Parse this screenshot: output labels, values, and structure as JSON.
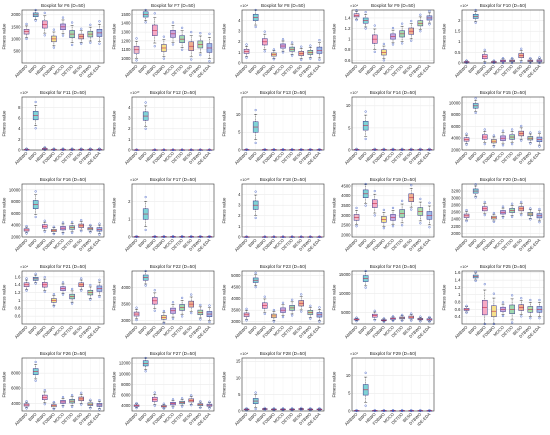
{
  "categories": [
    "AMBWO",
    "BWO",
    "HBWO",
    "FDBWO",
    "MOCO",
    "DETDO",
    "BESO",
    "DTBWO",
    "IDE-EDA"
  ],
  "colors": [
    "#f2b8c6",
    "#7fd3d6",
    "#f7a9c4",
    "#f6e08a",
    "#c7a6e0",
    "#9fd8b0",
    "#f0b090",
    "#b0e0a8",
    "#9db8e8"
  ],
  "chart_data": [
    {
      "type": "box",
      "title": "Boxplot for F6 (D=50)",
      "ylabel": "Fitness value",
      "exp": "",
      "ylim": [
        0,
        2200
      ],
      "yticks": [
        500,
        1000,
        1500,
        2000
      ],
      "values": [
        1300,
        2000,
        1600,
        1000,
        1500,
        1200,
        1100,
        1200,
        1250
      ],
      "spread": [
        100,
        80,
        150,
        120,
        120,
        150,
        100,
        120,
        150
      ]
    },
    {
      "type": "box",
      "title": "Boxplot for F7 (D=50)",
      "ylabel": "Fitness value",
      "exp": "",
      "ylim": [
        950,
        1550
      ],
      "yticks": [
        1000,
        1100,
        1200,
        1300,
        1400,
        1500
      ],
      "values": [
        1100,
        1500,
        1320,
        1120,
        1280,
        1220,
        1140,
        1160,
        1120
      ],
      "spread": [
        40,
        30,
        60,
        40,
        40,
        40,
        50,
        40,
        50
      ]
    },
    {
      "type": "box",
      "title": "Boxplot for F8 (D=50)",
      "ylabel": "Fitness value",
      "exp": "×10⁴",
      "ylim": [
        0,
        5
      ],
      "yticks": [
        0,
        1,
        2,
        3,
        4
      ],
      "values": [
        1.1,
        4.3,
        2.0,
        0.8,
        1.6,
        1.3,
        0.9,
        1.0,
        1.2
      ],
      "spread": [
        0.2,
        0.3,
        0.3,
        0.15,
        0.2,
        0.2,
        0.2,
        0.2,
        0.3
      ]
    },
    {
      "type": "box",
      "title": "Boxplot for F9 (D=50)",
      "ylabel": "Fitness value",
      "exp": "×10⁴",
      "ylim": [
        0.55,
        1.55
      ],
      "yticks": [
        0.6,
        0.8,
        1,
        1.2,
        1.4
      ],
      "values": [
        1.45,
        1.35,
        1.0,
        0.75,
        1.05,
        1.1,
        1.15,
        1.3,
        1.4
      ],
      "spread": [
        0.03,
        0.05,
        0.08,
        0.05,
        0.05,
        0.06,
        0.06,
        0.05,
        0.04
      ]
    },
    {
      "type": "box",
      "title": "Boxplot for F10 (D=50)",
      "ylabel": "Fitness value",
      "exp": "×10⁴",
      "ylim": [
        0,
        2.5
      ],
      "yticks": [
        0,
        0.5,
        1,
        1.5,
        2
      ],
      "values": [
        0.05,
        2.2,
        0.3,
        0.05,
        0.1,
        0.1,
        0.35,
        0.1,
        0.1
      ],
      "spread": [
        0.02,
        0.1,
        0.1,
        0.02,
        0.04,
        0.04,
        0.1,
        0.04,
        0.05
      ]
    },
    {
      "type": "box",
      "title": "Boxplot for F11 (D=50)",
      "ylabel": "Fitness value",
      "exp": "×10⁵",
      "ylim": [
        0,
        10
      ],
      "yticks": [
        0,
        2,
        4,
        6,
        8
      ],
      "values": [
        0.1,
        6.5,
        0.2,
        0.1,
        0.1,
        0.1,
        0.1,
        0.1,
        0.1
      ],
      "spread": [
        0.05,
        0.8,
        0.1,
        0.05,
        0.05,
        0.05,
        0.05,
        0.05,
        0.05
      ]
    },
    {
      "type": "box",
      "title": "Boxplot for F12 (D=50)",
      "ylabel": "Fitness value",
      "exp": "×10¹⁰",
      "ylim": [
        0,
        5
      ],
      "yticks": [
        0,
        1,
        2,
        3,
        4
      ],
      "values": [
        0.02,
        3.2,
        0.02,
        0.02,
        0.02,
        0.02,
        0.02,
        0.02,
        0.02
      ],
      "spread": [
        0.01,
        0.4,
        0.01,
        0.01,
        0.01,
        0.01,
        0.01,
        0.01,
        0.01
      ]
    },
    {
      "type": "box",
      "title": "Boxplot for F13 (D=50)",
      "ylabel": "Fitness value",
      "exp": "×10⁹",
      "ylim": [
        0,
        15
      ],
      "yticks": [
        0,
        5,
        10
      ],
      "values": [
        0.1,
        6.5,
        0.1,
        0.1,
        0.1,
        0.1,
        0.1,
        0.1,
        0.1
      ],
      "spread": [
        0.05,
        1.5,
        0.05,
        0.05,
        0.05,
        0.05,
        0.05,
        0.05,
        0.05
      ]
    },
    {
      "type": "box",
      "title": "Boxplot for F14 (D=50)",
      "ylabel": "Fitness value",
      "exp": "×10⁷",
      "ylim": [
        0,
        12
      ],
      "yticks": [
        0,
        5,
        10
      ],
      "values": [
        0.1,
        5.5,
        0.1,
        0.1,
        0.1,
        0.1,
        0.1,
        0.1,
        0.1
      ],
      "spread": [
        0.05,
        1.0,
        0.05,
        0.05,
        0.05,
        0.05,
        0.05,
        0.05,
        0.05
      ]
    },
    {
      "type": "box",
      "title": "Boxplot for F15 (D=50)",
      "ylabel": "Fitness value",
      "exp": "",
      "ylim": [
        2000,
        11000
      ],
      "yticks": [
        2000,
        4000,
        6000,
        8000,
        10000
      ],
      "values": [
        3800,
        9500,
        4200,
        3500,
        4000,
        4200,
        4800,
        4000,
        3800
      ],
      "spread": [
        300,
        400,
        400,
        300,
        400,
        400,
        400,
        300,
        400
      ]
    },
    {
      "type": "box",
      "title": "Boxplot for F16 (D=50)",
      "ylabel": "Fitness value",
      "exp": "",
      "ylim": [
        2000,
        11000
      ],
      "yticks": [
        2000,
        4000,
        6000,
        8000,
        10000
      ],
      "values": [
        3200,
        7500,
        3800,
        3100,
        3500,
        3600,
        3900,
        3400,
        3300
      ],
      "spread": [
        200,
        700,
        300,
        200,
        300,
        300,
        300,
        200,
        300
      ]
    },
    {
      "type": "box",
      "title": "Boxplot for F17 (D=50)",
      "ylabel": "Fitness value",
      "exp": "×10⁸",
      "ylim": [
        0,
        3
      ],
      "yticks": [
        0,
        1,
        2
      ],
      "values": [
        0.02,
        1.3,
        0.02,
        0.02,
        0.02,
        0.02,
        0.02,
        0.02,
        0.02
      ],
      "spread": [
        0.01,
        0.3,
        0.01,
        0.01,
        0.01,
        0.01,
        0.01,
        0.01,
        0.01
      ]
    },
    {
      "type": "box",
      "title": "Boxplot for F18 (D=50)",
      "ylabel": "Fitness value",
      "exp": "×10¹⁰",
      "ylim": [
        0,
        5
      ],
      "yticks": [
        0,
        1,
        2,
        3,
        4
      ],
      "values": [
        0.02,
        3.0,
        0.02,
        0.02,
        0.02,
        0.02,
        0.02,
        0.02,
        0.02
      ],
      "spread": [
        0.01,
        0.4,
        0.01,
        0.01,
        0.01,
        0.01,
        0.01,
        0.01,
        0.01
      ]
    },
    {
      "type": "box",
      "title": "Boxplot for F19 (D=50)",
      "ylabel": "Fitness value",
      "exp": "",
      "ylim": [
        1900,
        4600
      ],
      "yticks": [
        2000,
        2500,
        3000,
        3500,
        4000,
        4500
      ],
      "values": [
        2900,
        4100,
        3600,
        2800,
        2900,
        3100,
        3900,
        3200,
        3000
      ],
      "spread": [
        150,
        200,
        200,
        150,
        150,
        200,
        200,
        200,
        200
      ]
    },
    {
      "type": "box",
      "title": "Boxplot for F20 (D=50)",
      "ylabel": "Fitness value",
      "exp": "",
      "ylim": [
        1900,
        3400
      ],
      "yticks": [
        2000,
        2200,
        2400,
        2600,
        2800,
        3000,
        3200
      ],
      "values": [
        2500,
        3200,
        2700,
        2450,
        2600,
        2650,
        2700,
        2550,
        2500
      ],
      "spread": [
        50,
        60,
        60,
        40,
        50,
        60,
        60,
        50,
        60
      ]
    },
    {
      "type": "box",
      "title": "Boxplot for F21 (D=50)",
      "ylabel": "Fitness value",
      "exp": "×10⁴",
      "ylim": [
        0.4,
        1.75
      ],
      "yticks": [
        0.6,
        0.8,
        1,
        1.2,
        1.4,
        1.6
      ],
      "values": [
        1.4,
        1.55,
        1.4,
        1.0,
        1.3,
        1.1,
        1.4,
        1.2,
        1.3
      ],
      "spread": [
        0.05,
        0.04,
        0.06,
        0.05,
        0.05,
        0.06,
        0.05,
        0.06,
        0.07
      ]
    },
    {
      "type": "box",
      "title": "Boxplot for F22 (D=50)",
      "ylabel": "Fitness value",
      "exp": "",
      "ylim": [
        2900,
        4500
      ],
      "yticks": [
        3000,
        3500,
        4000
      ],
      "values": [
        3200,
        4300,
        3600,
        3100,
        3300,
        3400,
        3500,
        3250,
        3200
      ],
      "spread": [
        60,
        80,
        100,
        60,
        80,
        90,
        90,
        70,
        80
      ]
    },
    {
      "type": "box",
      "title": "Boxplot for F23 (D=50)",
      "ylabel": "Fitness value",
      "exp": "",
      "ylim": [
        2900,
        5200
      ],
      "yticks": [
        3000,
        3500,
        4000,
        4500,
        5000
      ],
      "values": [
        3300,
        4800,
        3700,
        3250,
        3500,
        3600,
        3800,
        3400,
        3300
      ],
      "spread": [
        80,
        100,
        120,
        80,
        100,
        110,
        120,
        90,
        100
      ]
    },
    {
      "type": "box",
      "title": "Boxplot for F24 (D=50)",
      "ylabel": "Fitness value",
      "exp": "",
      "ylim": [
        2000,
        16000
      ],
      "yticks": [
        5000,
        10000,
        15000
      ],
      "values": [
        3200,
        14000,
        4200,
        3000,
        3400,
        3600,
        3800,
        3300,
        3200
      ],
      "spread": [
        150,
        800,
        400,
        150,
        200,
        250,
        300,
        200,
        200
      ]
    },
    {
      "type": "box",
      "title": "Boxplot for F25 (D=50)",
      "ylabel": "Fitness value",
      "exp": "×10⁴",
      "ylim": [
        0.2,
        1.65
      ],
      "yticks": [
        0.4,
        0.6,
        0.8,
        1,
        1.2,
        1.4,
        1.6
      ],
      "values": [
        0.6,
        1.5,
        0.65,
        0.55,
        0.6,
        0.6,
        0.65,
        0.6,
        0.6
      ],
      "spread": [
        0.03,
        0.04,
        0.2,
        0.15,
        0.06,
        0.12,
        0.08,
        0.08,
        0.08
      ]
    },
    {
      "type": "box",
      "title": "Boxplot for F26 (D=50)",
      "ylabel": "Fitness value",
      "exp": "",
      "ylim": [
        3000,
        10000
      ],
      "yticks": [
        4000,
        6000,
        8000
      ],
      "values": [
        3800,
        8200,
        4800,
        3700,
        4200,
        4300,
        4600,
        3900,
        3800
      ],
      "spread": [
        150,
        400,
        300,
        150,
        200,
        250,
        250,
        180,
        200
      ]
    },
    {
      "type": "box",
      "title": "Boxplot for F27 (D=50)",
      "ylabel": "Fitness value",
      "exp": "",
      "ylim": [
        3000,
        13000
      ],
      "yticks": [
        4000,
        6000,
        8000,
        10000,
        12000
      ],
      "values": [
        4000,
        12000,
        5200,
        3900,
        4400,
        4600,
        5000,
        4200,
        4100
      ],
      "spread": [
        150,
        500,
        400,
        150,
        250,
        250,
        300,
        200,
        200
      ]
    },
    {
      "type": "box",
      "title": "Boxplot for F28 (D=50)",
      "ylabel": "Fitness value",
      "exp": "×10⁴",
      "ylim": [
        0,
        16
      ],
      "yticks": [
        0,
        5,
        10,
        15
      ],
      "values": [
        0.5,
        3.0,
        0.6,
        0.5,
        0.5,
        0.5,
        0.6,
        0.5,
        0.5
      ],
      "spread": [
        0.1,
        0.8,
        0.1,
        0.1,
        0.1,
        0.1,
        0.1,
        0.1,
        0.1
      ]
    },
    {
      "type": "box",
      "title": "Boxplot for F29 (D=50)",
      "ylabel": "Fitness value",
      "exp": "×10⁹",
      "ylim": [
        0,
        15
      ],
      "yticks": [
        0,
        5,
        10
      ],
      "values": [
        0.1,
        6.0,
        0.1,
        0.1,
        0.1,
        0.1,
        0.1,
        0.1,
        0.1
      ],
      "spread": [
        0.05,
        1.5,
        0.05,
        0.05,
        0.05,
        0.05,
        0.05,
        0.05,
        0.05
      ]
    }
  ]
}
